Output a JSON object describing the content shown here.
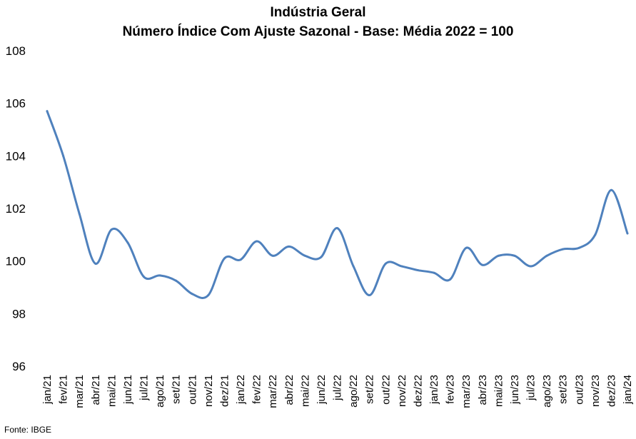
{
  "chart_data": {
    "type": "line",
    "title": "Indústria Geral",
    "subtitle": "Número Índice Com Ajuste Sazonal - Base: Média 2022 = 100",
    "source": "Fonte: IBGE",
    "ylim": [
      96,
      108
    ],
    "yticks": [
      "96",
      "98",
      "100",
      "102",
      "104",
      "106",
      "108"
    ],
    "grid": false,
    "line_color": "#4f81bd",
    "categories": [
      "jan/21",
      "fev/21",
      "mar/21",
      "abr/21",
      "mai/21",
      "jun/21",
      "jul/21",
      "ago/21",
      "set/21",
      "out/21",
      "nov/21",
      "dez/21",
      "jan/22",
      "fev/22",
      "mar/22",
      "abr/22",
      "mai/22",
      "jun/22",
      "jul/22",
      "ago/22",
      "set/22",
      "out/22",
      "nov/22",
      "dez/22",
      "jan/23",
      "fev/23",
      "mar/23",
      "abr/23",
      "mai/23",
      "jun/23",
      "jul/23",
      "ago/23",
      "set/23",
      "out/23",
      "nov/23",
      "dez/23",
      "jan/24"
    ],
    "series": [
      {
        "values": [
          105.7,
          104.0,
          101.8,
          99.9,
          101.2,
          100.7,
          99.4,
          99.45,
          99.25,
          98.75,
          98.7,
          100.1,
          100.05,
          100.75,
          100.2,
          100.55,
          100.2,
          100.15,
          101.25,
          99.8,
          98.7,
          99.9,
          99.8,
          99.65,
          99.55,
          99.3,
          100.5,
          99.85,
          100.2,
          100.2,
          99.8,
          100.2,
          100.45,
          100.5,
          101.0,
          102.7,
          101.05
        ]
      }
    ]
  }
}
